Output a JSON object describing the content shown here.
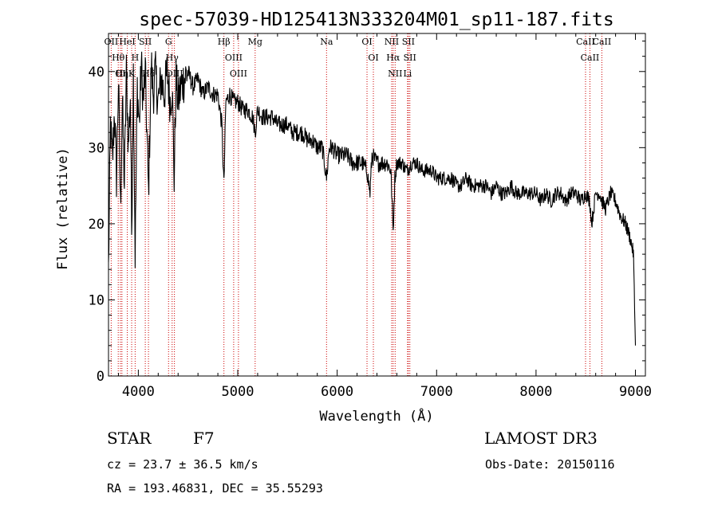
{
  "chart_data": {
    "type": "line",
    "title": "spec-57039-HD125413N333204M01_sp11-187.fits",
    "xlabel": "Wavelength (Å)",
    "ylabel": "Flux (relative)",
    "xlim": [
      3700,
      9100
    ],
    "ylim": [
      0,
      45
    ],
    "xticks": [
      4000,
      5000,
      6000,
      7000,
      8000,
      9000
    ],
    "yticks": [
      0,
      10,
      20,
      30,
      40
    ],
    "grid": false,
    "series": [
      {
        "name": "flux",
        "x": [
          3700,
          3720,
          3740,
          3760,
          3780,
          3800,
          3820,
          3840,
          3860,
          3880,
          3900,
          3920,
          3933,
          3950,
          3968,
          3990,
          4010,
          4030,
          4050,
          4070,
          4102,
          4130,
          4150,
          4170,
          4200,
          4230,
          4260,
          4290,
          4320,
          4340,
          4360,
          4380,
          4400,
          4430,
          4460,
          4500,
          4550,
          4600,
          4650,
          4700,
          4750,
          4800,
          4840,
          4861,
          4880,
          4920,
          4960,
          5000,
          5050,
          5100,
          5150,
          5175,
          5200,
          5250,
          5300,
          5350,
          5400,
          5450,
          5500,
          5550,
          5600,
          5650,
          5700,
          5750,
          5800,
          5850,
          5893,
          5920,
          5950,
          6000,
          6050,
          6100,
          6150,
          6200,
          6250,
          6300,
          6330,
          6350,
          6400,
          6450,
          6500,
          6540,
          6563,
          6580,
          6600,
          6650,
          6700,
          6750,
          6800,
          6850,
          6900,
          6950,
          7000,
          7050,
          7100,
          7150,
          7200,
          7250,
          7300,
          7350,
          7400,
          7450,
          7500,
          7550,
          7600,
          7650,
          7700,
          7750,
          7800,
          7850,
          7900,
          7950,
          8000,
          8050,
          8100,
          8150,
          8200,
          8250,
          8300,
          8350,
          8400,
          8450,
          8500,
          8540,
          8560,
          8600,
          8640,
          8662,
          8700,
          8750,
          8800,
          8850,
          8900,
          8950,
          8980,
          9000
        ],
        "y": [
          14,
          33,
          28,
          35,
          26,
          39,
          22,
          36,
          25,
          40,
          30,
          37,
          19,
          40,
          16,
          38,
          33,
          41,
          36,
          40,
          24,
          41,
          37,
          40,
          36,
          39,
          37,
          40,
          36,
          38,
          26,
          39,
          36,
          38,
          39,
          40,
          38,
          39,
          37,
          38,
          37,
          37,
          33,
          25,
          36,
          37,
          36,
          36,
          35,
          35,
          34,
          32,
          35,
          34,
          34,
          34,
          33,
          33,
          33,
          32,
          32,
          32,
          31,
          31,
          30,
          30,
          26,
          30,
          30,
          29,
          29,
          29,
          28,
          28,
          28,
          27,
          24,
          29,
          28,
          28,
          28,
          27,
          19,
          26,
          28,
          28,
          27,
          28,
          28,
          27,
          27,
          27,
          26,
          26,
          26,
          26,
          25,
          25,
          26,
          25,
          25,
          25,
          25,
          24,
          25,
          24,
          24,
          25,
          24,
          24,
          24,
          24,
          24,
          23,
          24,
          23,
          24,
          24,
          23,
          24,
          24,
          23,
          24,
          23,
          20,
          24,
          24,
          23,
          22,
          24,
          23,
          21,
          20,
          18,
          16,
          4
        ]
      }
    ],
    "lines": [
      {
        "w": 3727,
        "label": "OII"
      },
      {
        "w": 3798,
        "label": "Hθ"
      },
      {
        "w": 3820,
        "label": "OI"
      },
      {
        "w": 3835,
        "label": "Hη"
      },
      {
        "w": 3889,
        "label": "HeI"
      },
      {
        "w": 3933,
        "label": "K"
      },
      {
        "w": 3968,
        "label": "H"
      },
      {
        "w": 4070,
        "label": "SII"
      },
      {
        "w": 4102,
        "label": "Hδ"
      },
      {
        "w": 4304,
        "label": "G"
      },
      {
        "w": 4340,
        "label": "Hγ"
      },
      {
        "w": 4363,
        "label": "OIII"
      },
      {
        "w": 4861,
        "label": "Hβ"
      },
      {
        "w": 4959,
        "label": "OIII"
      },
      {
        "w": 5007,
        "label": "OIII"
      },
      {
        "w": 5175,
        "label": "Mg"
      },
      {
        "w": 5893,
        "label": "Na"
      },
      {
        "w": 6300,
        "label": "OI"
      },
      {
        "w": 6364,
        "label": "OI"
      },
      {
        "w": 6548,
        "label": "NII"
      },
      {
        "w": 6563,
        "label": "Hα"
      },
      {
        "w": 6583,
        "label": "NII"
      },
      {
        "w": 6708,
        "label": "Li"
      },
      {
        "w": 6716,
        "label": "SII"
      },
      {
        "w": 6731,
        "label": "SII"
      },
      {
        "w": 8498,
        "label": "CaII"
      },
      {
        "w": 8542,
        "label": "CaII"
      },
      {
        "w": 8662,
        "label": "CaII"
      }
    ],
    "colors": {
      "spectrum": "#000000",
      "line_marker": "#cc0000",
      "frame": "#000000"
    }
  },
  "info": {
    "object_type": "STAR",
    "subclass": "F7",
    "survey": "LAMOST DR3",
    "cz": "cz = 23.7 ± 36.5 km/s",
    "obs_date": "Obs-Date: 20150116",
    "coords": "RA = 193.46831, DEC =  35.55293"
  }
}
